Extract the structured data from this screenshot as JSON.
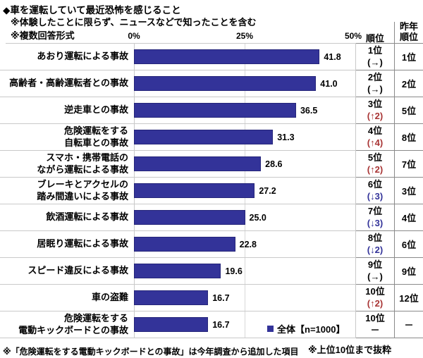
{
  "title": "◆車を運転していて最近恐怖を感じること",
  "subtitle1": "※体験したことに限らず、ニュースなどで知ったことを含む",
  "subtitle2": "※複数回答形式",
  "axis": {
    "ticks": [
      "0%",
      "25%",
      "50%"
    ]
  },
  "table_headers": {
    "rank": "順位",
    "last_year_rank": "昨年\n順位"
  },
  "legend": {
    "label": "全体【n=1000】"
  },
  "notes": {
    "bottom_left": "※「危険運転をする電動キックボードとの事故」は今年調査から追加した項目",
    "bottom_right": "※上位10位まで抜粋"
  },
  "colors": {
    "bar": "#333399",
    "rank_up": "#a83434",
    "rank_down": "#333399",
    "rank_same": "#000000"
  },
  "chart_data": {
    "type": "bar",
    "orientation": "horizontal",
    "title": "車を運転していて最近恐怖を感じること",
    "xlabel": "",
    "ylabel": "",
    "xlim": [
      0,
      50
    ],
    "x_ticks": [
      0,
      25,
      50
    ],
    "grid": true,
    "legend_position": "bottom-right",
    "series_name": "全体【n=1000】",
    "categories": [
      "あおり運転による事故",
      "高齢者・高齢運転者との事故",
      "逆走車との事故",
      "危険運転をする自転車との事故",
      "スマホ・携帯電話のながら運転による事故",
      "ブレーキとアクセルの踏み間違いによる事故",
      "飲酒運転による事故",
      "居眠り運転による事故",
      "スピード違反による事故",
      "車の盗難",
      "危険運転をする電動キックボードとの事故"
    ],
    "values": [
      41.8,
      41.0,
      36.5,
      31.3,
      28.6,
      27.2,
      25.0,
      22.8,
      19.6,
      16.7,
      16.7
    ],
    "rows": [
      {
        "label_lines": [
          "あおり運転による事故"
        ],
        "value": 41.8,
        "value_label": "41.8",
        "rank": "1位",
        "change": "(→)",
        "trend": "same",
        "last_year": "1位"
      },
      {
        "label_lines": [
          "高齢者・高齢運転者との事故"
        ],
        "value": 41.0,
        "value_label": "41.0",
        "rank": "2位",
        "change": "(→)",
        "trend": "same",
        "last_year": "2位"
      },
      {
        "label_lines": [
          "逆走車との事故"
        ],
        "value": 36.5,
        "value_label": "36.5",
        "rank": "3位",
        "change": "(↑2)",
        "trend": "up",
        "last_year": "5位"
      },
      {
        "label_lines": [
          "危険運転をする",
          "自転車との事故"
        ],
        "value": 31.3,
        "value_label": "31.3",
        "rank": "4位",
        "change": "(↑4)",
        "trend": "up",
        "last_year": "8位"
      },
      {
        "label_lines": [
          "スマホ・携帯電話の",
          "ながら運転による事故"
        ],
        "value": 28.6,
        "value_label": "28.6",
        "rank": "5位",
        "change": "(↑2)",
        "trend": "up",
        "last_year": "7位"
      },
      {
        "label_lines": [
          "ブレーキとアクセルの",
          "踏み間違いによる事故"
        ],
        "value": 27.2,
        "value_label": "27.2",
        "rank": "6位",
        "change": "(↓3)",
        "trend": "down",
        "last_year": "3位"
      },
      {
        "label_lines": [
          "飲酒運転による事故"
        ],
        "value": 25.0,
        "value_label": "25.0",
        "rank": "7位",
        "change": "(↓3)",
        "trend": "down",
        "last_year": "4位"
      },
      {
        "label_lines": [
          "居眠り運転による事故"
        ],
        "value": 22.8,
        "value_label": "22.8",
        "rank": "8位",
        "change": "(↓2)",
        "trend": "down",
        "last_year": "6位"
      },
      {
        "label_lines": [
          "スピード違反による事故"
        ],
        "value": 19.6,
        "value_label": "19.6",
        "rank": "9位",
        "change": "(→)",
        "trend": "same",
        "last_year": "9位"
      },
      {
        "label_lines": [
          "車の盗難"
        ],
        "value": 16.7,
        "value_label": "16.7",
        "rank": "10位",
        "change": "(↑2)",
        "trend": "up",
        "last_year": "12位"
      },
      {
        "label_lines": [
          "危険運転をする",
          "電動キックボードとの事故"
        ],
        "value": 16.7,
        "value_label": "16.7",
        "rank": "10位",
        "change": "－",
        "trend": "none",
        "last_year": "－"
      }
    ]
  }
}
